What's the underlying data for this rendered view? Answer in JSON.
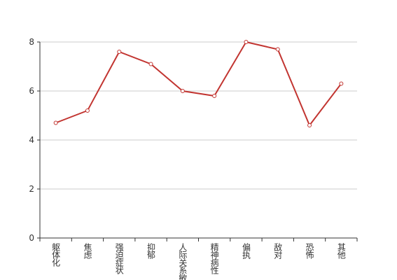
{
  "chart_data": {
    "type": "line",
    "categories": [
      "躯体化",
      "焦虑",
      "强迫症状",
      "抑郁",
      "人际关系敏感",
      "精神病性",
      "偏执",
      "敌对",
      "恐怖",
      "其他"
    ],
    "series": [
      {
        "color": "#c23531",
        "values": [
          4.7,
          5.2,
          7.6,
          7.1,
          6.0,
          5.8,
          8.0,
          7.7,
          4.6,
          6.3
        ]
      }
    ],
    "ylim": [
      0,
      8
    ],
    "yticks": [
      0,
      2,
      4,
      6,
      8
    ],
    "grid": true
  }
}
